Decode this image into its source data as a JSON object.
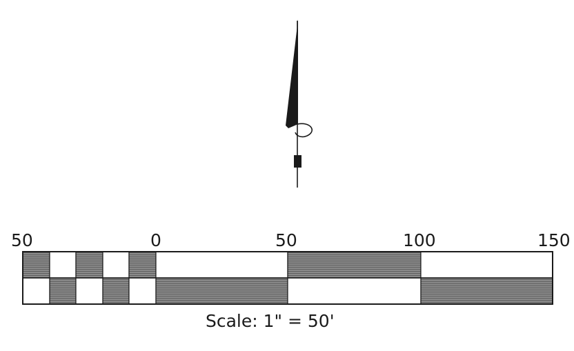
{
  "north_arrow": {
    "icon": "north-arrow-icon"
  },
  "scale_bar": {
    "tick_labels": [
      "50",
      "0",
      "50",
      "100",
      "150"
    ],
    "caption": "Scale:  1\"  =  50'",
    "colors": {
      "dark": "#7a7a7a",
      "light": "#ffffff",
      "outline": "#1a1a1a"
    }
  }
}
